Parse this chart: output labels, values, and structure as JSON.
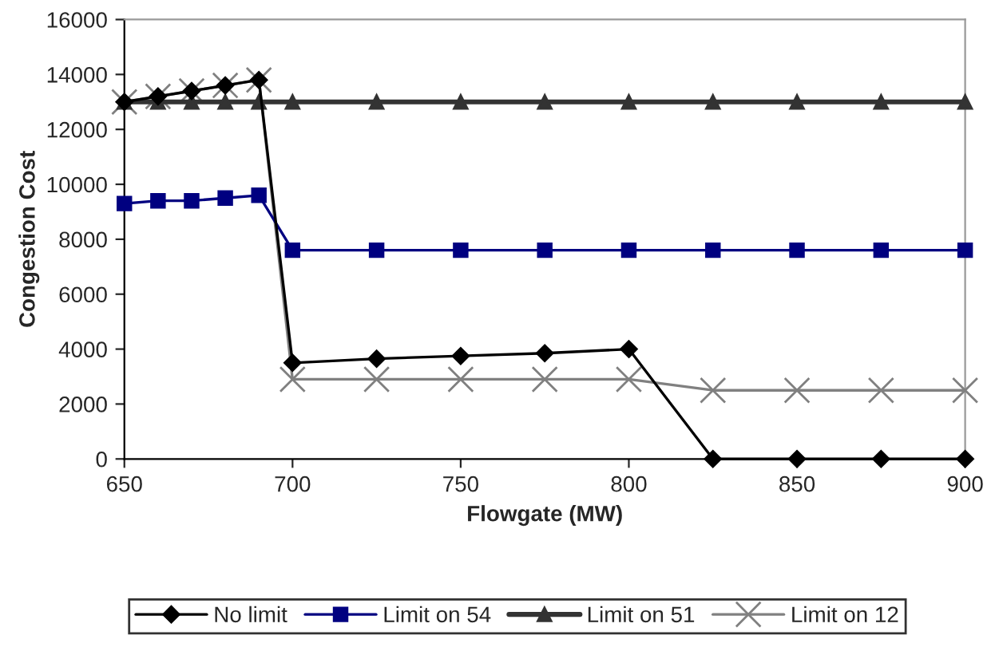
{
  "chart_data": {
    "type": "line",
    "xlabel": "Flowgate (MW)",
    "ylabel": "Congestion Cost",
    "x": [
      650,
      660,
      670,
      680,
      690,
      700,
      725,
      750,
      775,
      800,
      825,
      850,
      875,
      900
    ],
    "xlim": [
      650,
      900
    ],
    "xticks": [
      650,
      700,
      750,
      800,
      850,
      900
    ],
    "ylim": [
      0,
      16000
    ],
    "yticks": [
      0,
      2000,
      4000,
      6000,
      8000,
      10000,
      12000,
      14000,
      16000
    ],
    "grid": false,
    "legend": "bottom",
    "series": [
      {
        "name": "No limit",
        "color": "#000000",
        "marker": "diamond",
        "values": [
          13000,
          13200,
          13400,
          13600,
          13800,
          3500,
          3650,
          3750,
          3850,
          4000,
          0,
          0,
          0,
          0
        ]
      },
      {
        "name": "Limit on 54",
        "color": "#000080",
        "marker": "square",
        "values": [
          9300,
          9400,
          9400,
          9500,
          9600,
          7600,
          7600,
          7600,
          7600,
          7600,
          7600,
          7600,
          7600,
          7600
        ]
      },
      {
        "name": "Limit on 51",
        "color": "#333333",
        "marker": "triangle",
        "values": [
          13000,
          13000,
          13000,
          13000,
          13000,
          13000,
          13000,
          13000,
          13000,
          13000,
          13000,
          13000,
          13000,
          13000
        ]
      },
      {
        "name": "Limit on 12",
        "color": "#808080",
        "marker": "cross",
        "values": [
          13000,
          13200,
          13400,
          13600,
          13800,
          2900,
          2900,
          2900,
          2900,
          2900,
          2500,
          2500,
          2500,
          2500
        ]
      }
    ]
  }
}
